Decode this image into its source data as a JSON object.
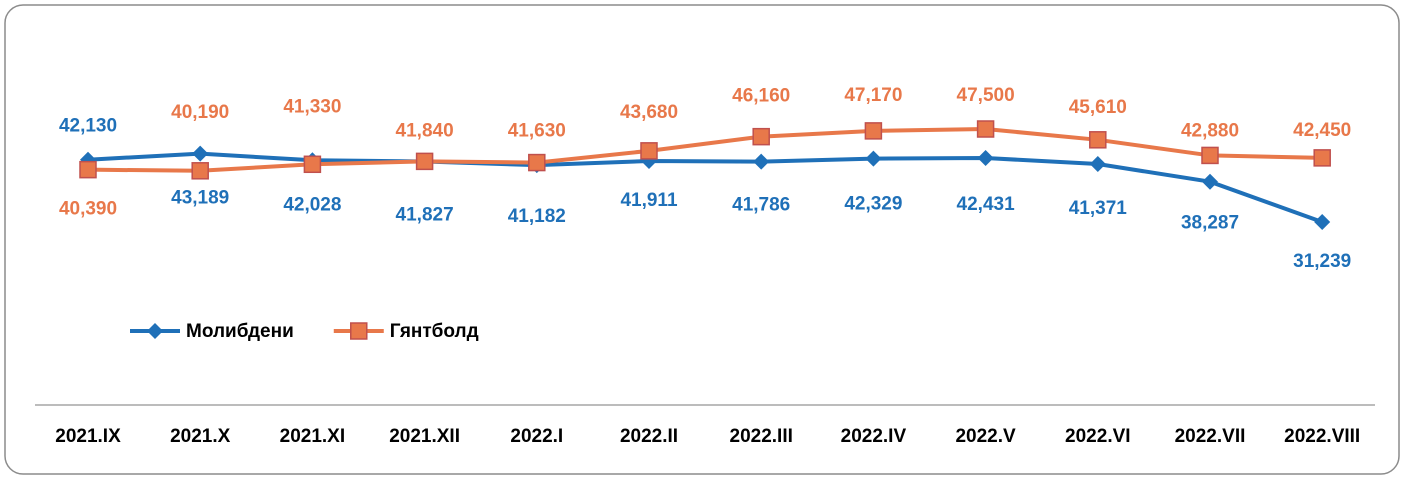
{
  "chart_data": {
    "type": "line",
    "categories": [
      "2021.IX",
      "2021.X",
      "2021.XI",
      "2021.XII",
      "2022.I",
      "2022.II",
      "2022.III",
      "2022.IV",
      "2022.V",
      "2022.VI",
      "2022.VII",
      "2022.VIII"
    ],
    "series": [
      {
        "name": "Молибдени",
        "color": "#1f70b8",
        "marker": "diamond",
        "values": [
          42130,
          43189,
          42028,
          41827,
          41182,
          41911,
          41786,
          42329,
          42431,
          41371,
          38287,
          31239
        ],
        "value_labels": [
          "42,130",
          "43,189",
          "42,028",
          "41,827",
          "41,182",
          "41,911",
          "41,786",
          "42,329",
          "42,431",
          "41,371",
          "38,287",
          "31,239"
        ]
      },
      {
        "name": "Гянтболд",
        "color": "#e8784a",
        "marker": "square",
        "values": [
          40390,
          40190,
          41330,
          41840,
          41630,
          43680,
          46160,
          47170,
          47500,
          45610,
          42880,
          42450
        ],
        "value_labels": [
          "40,390",
          "40,190",
          "41,330",
          "41,840",
          "41,630",
          "43,680",
          "46,160",
          "47,170",
          "47,500",
          "45,610",
          "42,880",
          "42,450"
        ]
      }
    ],
    "legend": "left"
  }
}
